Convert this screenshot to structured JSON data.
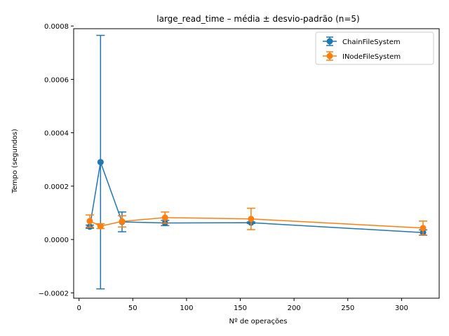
{
  "chart_data": {
    "type": "line",
    "title": "large_read_time – média ± desvio-padrão (n=5)",
    "xlabel": "Nº de operações",
    "ylabel": "Tempo (segundos)",
    "xlim": [
      -5,
      335
    ],
    "ylim": [
      -0.00022,
      0.00079
    ],
    "xticks": [
      0,
      50,
      100,
      150,
      200,
      250,
      300
    ],
    "yticks": [
      -0.0002,
      0.0,
      0.0002,
      0.0004,
      0.0006,
      0.0008
    ],
    "ytick_labels": [
      "−0.0002",
      "0.0000",
      "0.0002",
      "0.0004",
      "0.0006",
      "0.0008"
    ],
    "legend_position": "top-right",
    "grid": false,
    "series": [
      {
        "name": "ChainFileSystem",
        "color": "#1f77b4",
        "x": [
          10,
          20,
          40,
          80,
          160,
          320
        ],
        "y": [
          4.8e-05,
          0.00029,
          6.6e-05,
          6.2e-05,
          6.3e-05,
          2.6e-05
        ],
        "err": [
          6e-06,
          0.000475,
          3.7e-05,
          1e-05,
          3e-06,
          1e-05
        ]
      },
      {
        "name": "INodeFileSystem",
        "color": "#ff7f0e",
        "x": [
          10,
          20,
          40,
          80,
          160,
          320
        ],
        "y": [
          6.9e-05,
          5e-05,
          6.8e-05,
          8.2e-05,
          7.7e-05,
          4.3e-05
        ],
        "err": [
          2.3e-05,
          9e-06,
          2.1e-05,
          2.1e-05,
          4e-05,
          2.6e-05
        ]
      }
    ]
  }
}
